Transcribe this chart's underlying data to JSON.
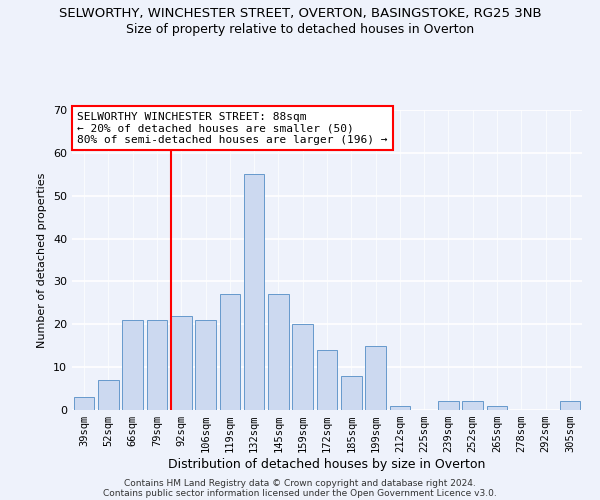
{
  "title": "SELWORTHY, WINCHESTER STREET, OVERTON, BASINGSTOKE, RG25 3NB",
  "subtitle": "Size of property relative to detached houses in Overton",
  "xlabel": "Distribution of detached houses by size in Overton",
  "ylabel": "Number of detached properties",
  "bar_labels": [
    "39sqm",
    "52sqm",
    "66sqm",
    "79sqm",
    "92sqm",
    "106sqm",
    "119sqm",
    "132sqm",
    "145sqm",
    "159sqm",
    "172sqm",
    "185sqm",
    "199sqm",
    "212sqm",
    "225sqm",
    "239sqm",
    "252sqm",
    "265sqm",
    "278sqm",
    "292sqm",
    "305sqm"
  ],
  "bar_values": [
    3,
    7,
    21,
    21,
    22,
    21,
    27,
    55,
    27,
    20,
    14,
    8,
    15,
    1,
    0,
    2,
    2,
    1,
    0,
    0,
    2
  ],
  "bar_color": "#ccd9f0",
  "bar_edge_color": "#6699cc",
  "ylim": [
    0,
    70
  ],
  "yticks": [
    0,
    10,
    20,
    30,
    40,
    50,
    60,
    70
  ],
  "annotation_title": "SELWORTHY WINCHESTER STREET: 88sqm",
  "annotation_line1": "← 20% of detached houses are smaller (50)",
  "annotation_line2": "80% of semi-detached houses are larger (196) →",
  "footer1": "Contains HM Land Registry data © Crown copyright and database right 2024.",
  "footer2": "Contains public sector information licensed under the Open Government Licence v3.0.",
  "background_color": "#eef2fb",
  "title_fontsize": 9.5,
  "subtitle_fontsize": 9,
  "annotation_fontsize": 8.0,
  "xlabel_fontsize": 9,
  "ylabel_fontsize": 8,
  "footer_fontsize": 6.5,
  "redline_bar_index": 4
}
